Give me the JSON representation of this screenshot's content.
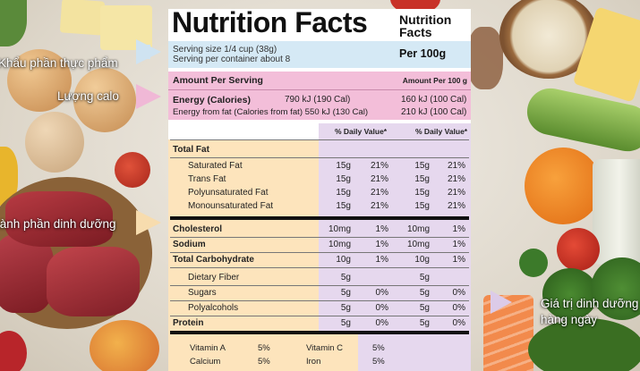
{
  "callouts": {
    "serving_size": "Khẩu phần thực phẩm",
    "calories": "Lượng calo",
    "nutrients": "Thành phần dinh dưỡng",
    "daily_value_line1": "Giá trị dinh dưỡng",
    "daily_value_line2": "hàng ngày"
  },
  "label": {
    "title": "Nutrition Facts",
    "title_small_line1": "Nutrition",
    "title_small_line2": "Facts",
    "serving_size": "Serving size 1/4 cup (38g)",
    "servings_per_container": "Serving per container about 8",
    "per_100g": "Per 100g",
    "amount_per_serving": "Amount Per Serving",
    "amount_per_100g": "Amount Per 100 g",
    "energy_label": "Energy (Calories)",
    "energy_serving": "790 kJ (190 Cal)",
    "energy_100g": "160 kJ (100 Cal)",
    "energy_fat_label": "Energy from fat (Calories from fat) 550 kJ (130 Cal)",
    "energy_fat_100g": "210 kJ (100 Cal)",
    "daily_value_header_1": "% Daily Value*",
    "daily_value_header_2": "% Daily Value*",
    "nutrients": [
      {
        "name": "Total Fat",
        "g1": "",
        "p1": "",
        "g2": "",
        "p2": ""
      },
      {
        "name": "Saturated Fat",
        "g1": "15g",
        "p1": "21%",
        "g2": "15g",
        "p2": "21%"
      },
      {
        "name": "Trans Fat",
        "g1": "15g",
        "p1": "21%",
        "g2": "15g",
        "p2": "21%"
      },
      {
        "name": "Polyunsaturated Fat",
        "g1": "15g",
        "p1": "21%",
        "g2": "15g",
        "p2": "21%"
      },
      {
        "name": "Monounsaturated Fat",
        "g1": "15g",
        "p1": "21%",
        "g2": "15g",
        "p2": "21%"
      },
      {
        "name": "Cholesterol",
        "g1": "10mg",
        "p1": "1%",
        "g2": "10mg",
        "p2": "1%"
      },
      {
        "name": "Sodium",
        "g1": "10mg",
        "p1": "1%",
        "g2": "10mg",
        "p2": "1%"
      },
      {
        "name": "Total Carbohydrate",
        "g1": "10g",
        "p1": "1%",
        "g2": "10g",
        "p2": "1%"
      },
      {
        "name": "Dietary Fiber",
        "g1": "5g",
        "p1": "",
        "g2": "5g",
        "p2": ""
      },
      {
        "name": "Sugars",
        "g1": "5g",
        "p1": "0%",
        "g2": "5g",
        "p2": "0%"
      },
      {
        "name": "Polyalcohols",
        "g1": "5g",
        "p1": "0%",
        "g2": "5g",
        "p2": "0%"
      },
      {
        "name": "Protein",
        "g1": "5g",
        "p1": "0%",
        "g2": "5g",
        "p2": "0%"
      }
    ],
    "vitamins": {
      "vitamin_a": "Vitamin   A",
      "vitamin_a_pct": "5%",
      "vitamin_c": "Vitamin   C",
      "vitamin_c_pct": "5%",
      "calcium": "Calcium",
      "calcium_pct": "5%",
      "iron": "Iron",
      "iron_pct": "5%"
    }
  }
}
